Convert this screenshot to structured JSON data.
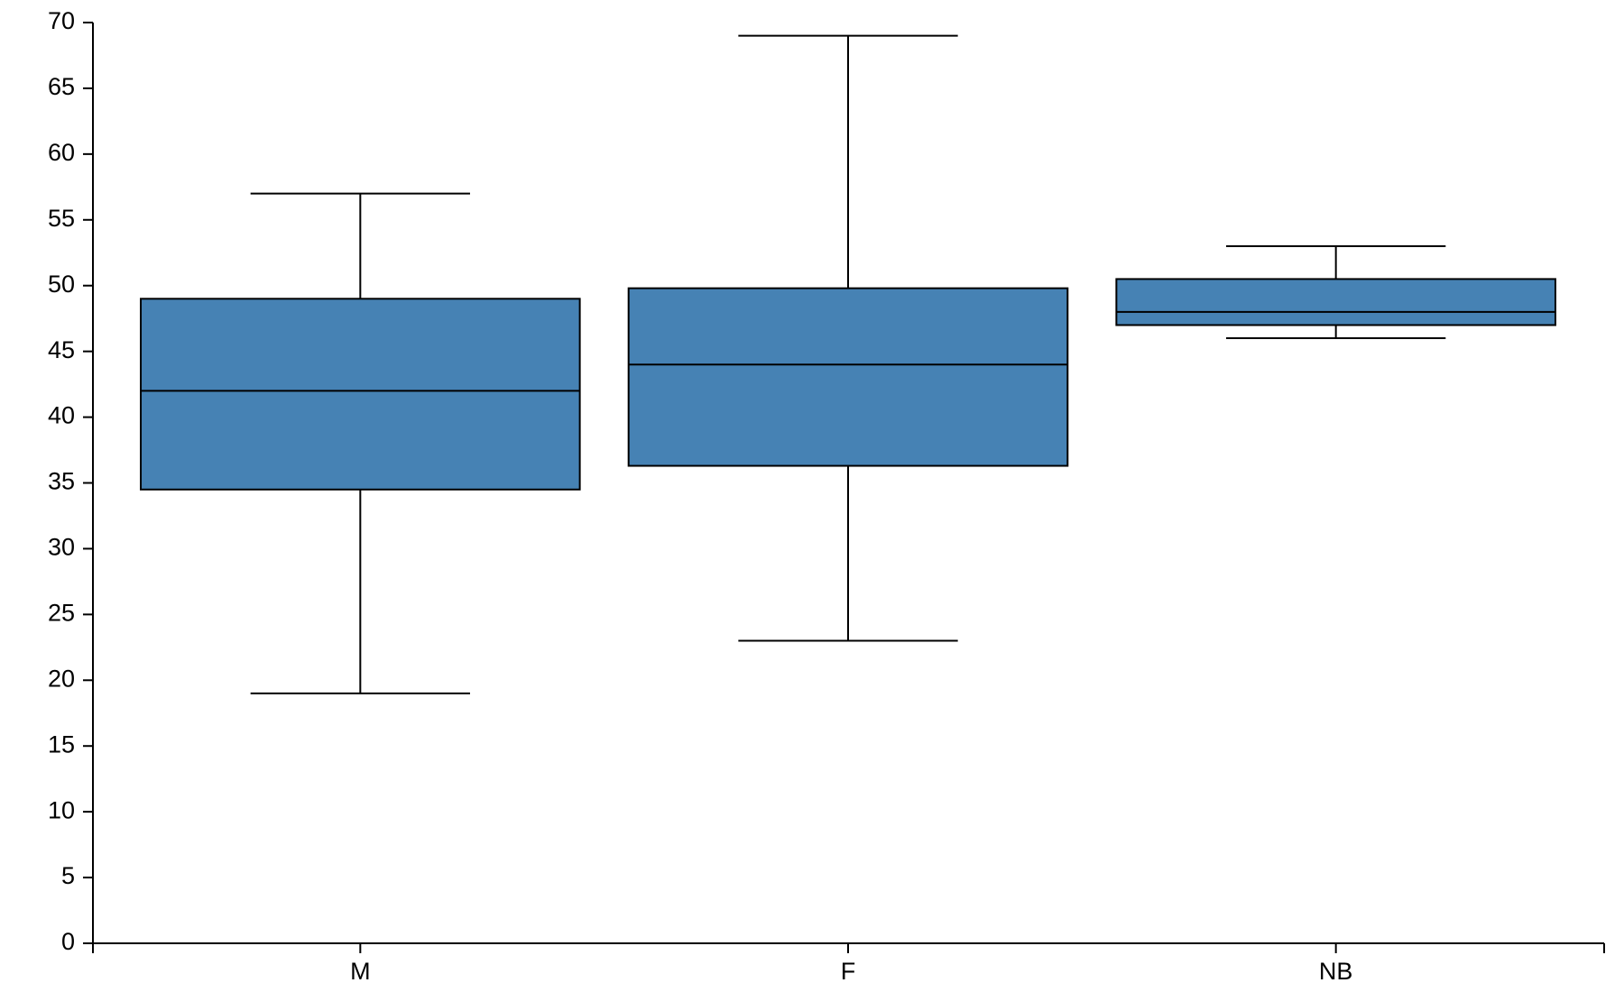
{
  "chart_data": {
    "type": "box",
    "categories": [
      "M",
      "F",
      "NB"
    ],
    "boxes": [
      {
        "min": 19,
        "q1": 34.5,
        "median": 42,
        "q3": 49,
        "max": 57
      },
      {
        "min": 23,
        "q1": 36.3,
        "median": 44,
        "q3": 49.8,
        "max": 69
      },
      {
        "min": 46,
        "q1": 47,
        "median": 48,
        "q3": 50.5,
        "max": 53
      }
    ],
    "color": "#4682b4",
    "ylim": [
      0,
      70
    ],
    "yticks": [
      0,
      5,
      10,
      15,
      20,
      25,
      30,
      35,
      40,
      45,
      50,
      55,
      60,
      65,
      70
    ]
  }
}
